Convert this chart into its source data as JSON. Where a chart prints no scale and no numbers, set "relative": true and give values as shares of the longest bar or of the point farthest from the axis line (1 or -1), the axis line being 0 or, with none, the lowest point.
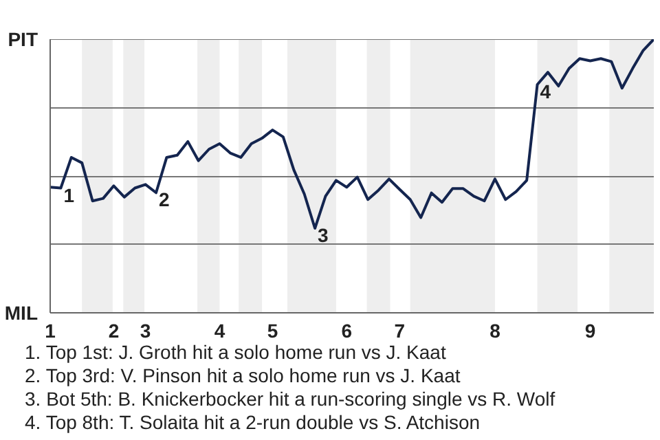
{
  "chart_data": {
    "type": "line",
    "relative": true,
    "categories": [
      "1",
      null,
      null,
      null,
      null,
      null,
      "2",
      null,
      null,
      "3",
      null,
      null,
      null,
      null,
      null,
      null,
      "4",
      null,
      null,
      null,
      null,
      "5",
      null,
      null,
      null,
      null,
      null,
      null,
      "6",
      null,
      null,
      null,
      null,
      "7",
      null,
      null,
      null,
      null,
      null,
      null,
      null,
      null,
      "8",
      null,
      null,
      null,
      null,
      null,
      null,
      null,
      null,
      "9",
      null,
      null,
      null,
      null,
      null,
      null
    ],
    "series": [
      {
        "color": "#14254f",
        "values": [
          0.459,
          0.456,
          0.568,
          0.548,
          0.409,
          0.418,
          0.464,
          0.423,
          0.456,
          0.469,
          0.439,
          0.568,
          0.576,
          0.626,
          0.556,
          0.598,
          0.618,
          0.584,
          0.568,
          0.618,
          0.638,
          0.668,
          0.643,
          0.523,
          0.434,
          0.309,
          0.426,
          0.484,
          0.459,
          0.496,
          0.414,
          0.448,
          0.489,
          0.451,
          0.414,
          0.348,
          0.438,
          0.404,
          0.454,
          0.454,
          0.426,
          0.409,
          0.489,
          0.414,
          0.443,
          0.484,
          0.834,
          0.879,
          0.829,
          0.893,
          0.929,
          0.921,
          0.929,
          0.918,
          0.821,
          0.893,
          0.959,
          1
        ]
      }
    ],
    "grid": "y",
    "annotations": [
      "PIT",
      "MIL",
      {
        "text": "1",
        "y": 0.456
      },
      {
        "text": "2",
        "y": 0.439
      },
      {
        "text": "3",
        "y": 0.309
      },
      {
        "text": "4",
        "y": 0.834
      },
      "1. Top 1st: J. Groth hit a solo home run vs J. Kaat",
      "2. Top 3rd: V. Pinson hit a solo home run vs J. Kaat",
      "3. Bot 5th: B. Knickerbocker hit a run-scoring single vs R. Wolf",
      "4. Top 8th: T. Solaita hit a 2-run double vs S. Atchison"
    ]
  }
}
